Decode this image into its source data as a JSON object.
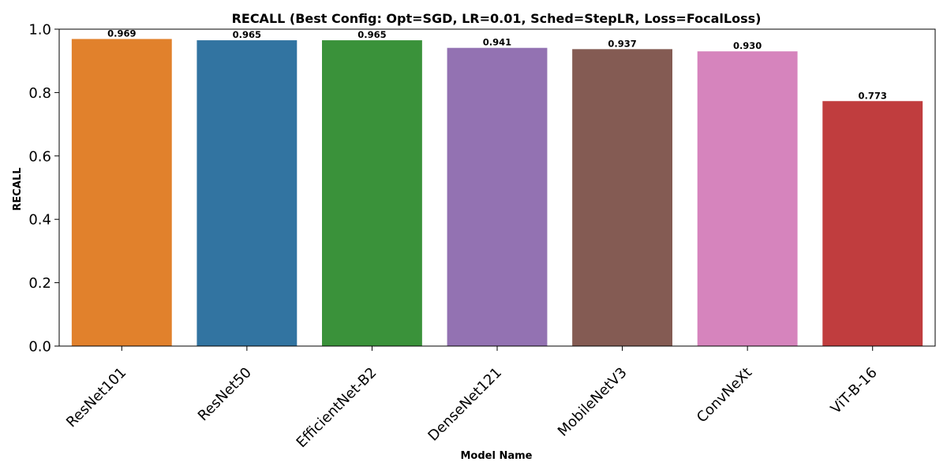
{
  "chart_data": {
    "type": "bar",
    "title": "RECALL (Best Config: Opt=SGD, LR=0.01, Sched=StepLR, Loss=FocalLoss)",
    "xlabel": "Model Name",
    "ylabel": "RECALL",
    "categories": [
      "ResNet101",
      "ResNet50",
      "EfficientNet-B2",
      "DenseNet121",
      "MobileNetV3",
      "ConvNeXt",
      "ViT-B-16"
    ],
    "values": [
      0.969,
      0.965,
      0.965,
      0.941,
      0.937,
      0.93,
      0.773
    ],
    "value_labels": [
      "0.969",
      "0.965",
      "0.965",
      "0.941",
      "0.937",
      "0.930",
      "0.773"
    ],
    "colors": [
      "#e1812c",
      "#3274a1",
      "#3a923a",
      "#9372b2",
      "#845b53",
      "#d684bd",
      "#c03d3e"
    ],
    "ylim": [
      0,
      1.0
    ],
    "yticks": [
      0.0,
      0.2,
      0.4,
      0.6,
      0.8,
      1.0
    ],
    "ytick_labels": [
      "0.0",
      "0.2",
      "0.4",
      "0.6",
      "0.8",
      "1.0"
    ],
    "grid": false,
    "legend": "none"
  }
}
